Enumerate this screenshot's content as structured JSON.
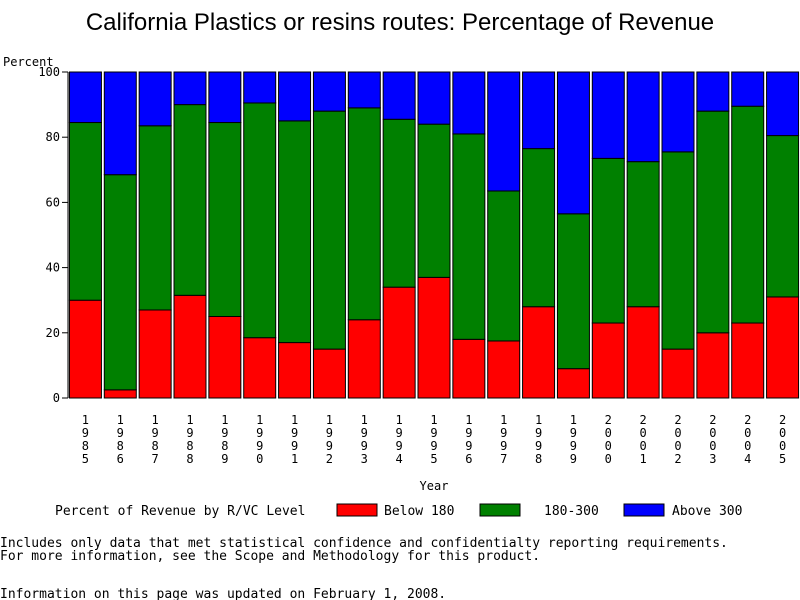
{
  "chart_data": {
    "type": "bar",
    "stacked": true,
    "title": "California Plastics or resins routes: Percentage of Revenue",
    "ylabel": "Percent",
    "xlabel": "Year",
    "ylim": [
      0,
      100
    ],
    "yticks": [
      0,
      20,
      40,
      60,
      80,
      100
    ],
    "categories": [
      "1985",
      "1986",
      "1987",
      "1988",
      "1989",
      "1990",
      "1991",
      "1992",
      "1993",
      "1994",
      "1995",
      "1996",
      "1997",
      "1998",
      "1999",
      "2000",
      "2001",
      "2002",
      "2003",
      "2004",
      "2005"
    ],
    "series": [
      {
        "name": "Below 180",
        "color": "#ff0000",
        "values": [
          30,
          2.5,
          27,
          31.5,
          25,
          18.5,
          17,
          15,
          24,
          34,
          37,
          18,
          17.5,
          28,
          9,
          23,
          28,
          15,
          20,
          23,
          31
        ]
      },
      {
        "name": "180-300",
        "color": "#008000",
        "values": [
          54.5,
          66,
          56.5,
          58.5,
          59.5,
          72,
          68,
          73,
          65,
          51.5,
          47,
          63,
          46,
          48.5,
          47.5,
          50.5,
          44.5,
          60.5,
          68,
          66.5,
          49.5
        ]
      },
      {
        "name": "Above 300",
        "color": "#0000ff",
        "values": [
          15.5,
          31.5,
          16.5,
          10,
          15.5,
          9.5,
          15,
          12,
          11,
          14.5,
          16,
          19,
          36.5,
          23.5,
          43.5,
          26.5,
          27.5,
          24.5,
          12,
          10.5,
          19.5
        ]
      }
    ],
    "legend_position": "bottom",
    "grid": false
  },
  "legend": {
    "title": "Percent of Revenue by R/VC Level"
  },
  "notes": {
    "line1": "Includes only data that met statistical confidence and confidentialty reporting requirements.",
    "line2": "For more information, see the Scope and Methodology for this product.",
    "updated": "Information on this page was updated on February 1, 2008."
  }
}
